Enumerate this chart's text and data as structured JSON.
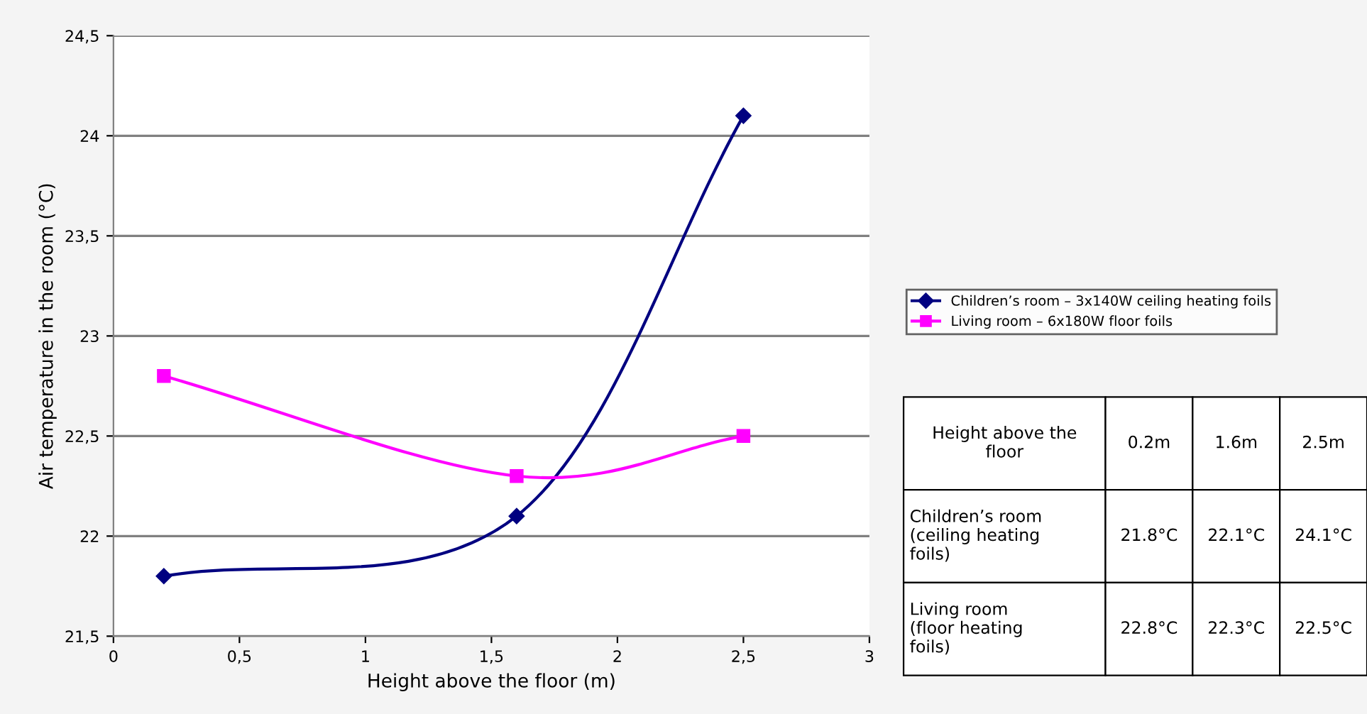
{
  "chart_data": [
    {
      "type": "line",
      "xlabel": "Height above the floor (m)",
      "ylabel": "Air temperature in the room (°C)",
      "x": [
        0.2,
        1.6,
        2.5
      ],
      "series": [
        {
          "name": "Children’s room – 3x140W ceiling heating foils",
          "color": "#000080",
          "marker": "diamond",
          "values": [
            21.8,
            22.1,
            24.1
          ]
        },
        {
          "name": "Living room – 6x180W floor foils",
          "color": "#ff00ff",
          "marker": "square",
          "values": [
            22.8,
            22.3,
            22.5
          ]
        }
      ],
      "xlim": [
        0,
        3
      ],
      "xticks": [
        0,
        {
          "value": 0.5,
          "label": "0,5"
        },
        1,
        {
          "value": 1.5,
          "label": "1,5"
        },
        2,
        {
          "value": 2.5,
          "label": "2,5"
        },
        3
      ],
      "ylim": [
        21.5,
        24.5
      ],
      "yticks": [
        {
          "value": 21.5,
          "label": "21,5"
        },
        22,
        {
          "value": 22.5,
          "label": "22,5"
        },
        23,
        {
          "value": 23.5,
          "label": "23,5"
        },
        24,
        {
          "value": 24.5,
          "label": "24,5"
        }
      ],
      "grid": "y",
      "legend": "right"
    },
    {
      "type": "other",
      "annotations": [
        "Height above the floor",
        "0.2m",
        "1.6m",
        "2.5m",
        "Children’s room (ceiling heating foils)",
        "21.8°C",
        "22.1°C",
        "24.1°C",
        "Living room (floor heating foils)",
        "22.8°C",
        "22.3°C",
        "22.5°C"
      ]
    }
  ]
}
